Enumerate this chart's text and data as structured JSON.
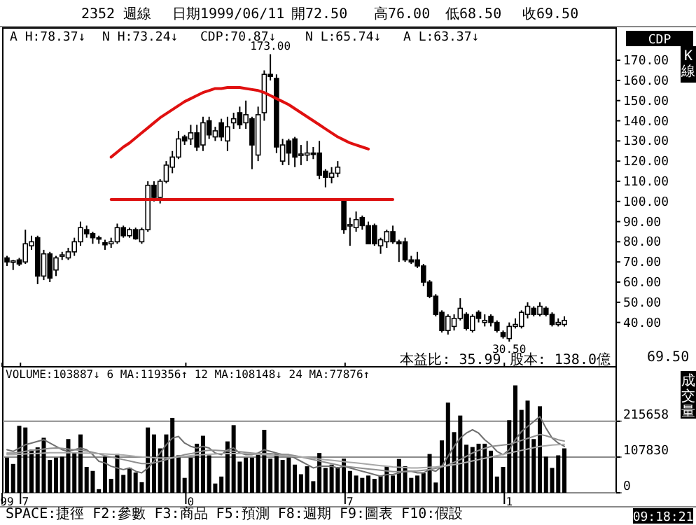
{
  "chart_data": [
    {
      "type": "candlestick",
      "title": "2352 週線",
      "tick_labels": "y",
      "categories": [
        "99",
        null,
        null,
        "7",
        null,
        null,
        null,
        null,
        null,
        null,
        null,
        null,
        null,
        null,
        null,
        null,
        null,
        null,
        null,
        null,
        null,
        null,
        null,
        null,
        null,
        null,
        null,
        null,
        null,
        null,
        "0",
        null,
        null,
        null,
        null,
        null,
        null,
        null,
        null,
        null,
        null,
        null,
        null,
        null,
        null,
        null,
        null,
        null,
        null,
        null,
        null,
        null,
        null,
        null,
        null,
        null,
        "7",
        null,
        null,
        null,
        null,
        null,
        null,
        null,
        null,
        null,
        null,
        null,
        null,
        null,
        null,
        null,
        null,
        null,
        null,
        null,
        null,
        null,
        null,
        null,
        null,
        null,
        "1",
        null,
        null,
        null,
        null,
        null,
        null,
        null,
        null,
        null
      ],
      "ohlc": [
        [
          72,
          73,
          68,
          70
        ],
        [
          70,
          71,
          66,
          70.5
        ],
        [
          71,
          72,
          68,
          69
        ],
        [
          70,
          86,
          69,
          79
        ],
        [
          78,
          83,
          76,
          80
        ],
        [
          82,
          83,
          59,
          63
        ],
        [
          63,
          76,
          61,
          74
        ],
        [
          74,
          75,
          60,
          62
        ],
        [
          66,
          73,
          63,
          72
        ],
        [
          73,
          75,
          71,
          73.5
        ],
        [
          72,
          77,
          71,
          75
        ],
        [
          75,
          82,
          73,
          80
        ],
        [
          80,
          90,
          78,
          87
        ],
        [
          86,
          88,
          82,
          84
        ],
        [
          84,
          85,
          79,
          82
        ],
        [
          82,
          83,
          79,
          81.5
        ],
        [
          79.5,
          81,
          76,
          78.5
        ],
        [
          79,
          82,
          77,
          80
        ],
        [
          80,
          89,
          79,
          87
        ],
        [
          87,
          88,
          82,
          83
        ],
        [
          83,
          87,
          82,
          86
        ],
        [
          86,
          87,
          81,
          81.5
        ],
        [
          80,
          87,
          79,
          86
        ],
        [
          86,
          110,
          85,
          108
        ],
        [
          108,
          110,
          100,
          102
        ],
        [
          102,
          111,
          99,
          110
        ],
        [
          110,
          120,
          109,
          118
        ],
        [
          117,
          125,
          114,
          122
        ],
        [
          122,
          135,
          121,
          131
        ],
        [
          132,
          133,
          128,
          130
        ],
        [
          131,
          138,
          128,
          134
        ],
        [
          134,
          138,
          125,
          127
        ],
        [
          128,
          142,
          125,
          139
        ],
        [
          140,
          142,
          131,
          133
        ],
        [
          132,
          137,
          130,
          135
        ],
        [
          139,
          141,
          130,
          132
        ],
        [
          130,
          142,
          125,
          137
        ],
        [
          139,
          144,
          136,
          141
        ],
        [
          144,
          147,
          136,
          138
        ],
        [
          139,
          150,
          136,
          143
        ],
        [
          141,
          142,
          116,
          128
        ],
        [
          123,
          147,
          120,
          143
        ],
        [
          144,
          165,
          140,
          163
        ],
        [
          163,
          173,
          160,
          162
        ],
        [
          161,
          163,
          124,
          127
        ],
        [
          120,
          131,
          118,
          128
        ],
        [
          130,
          131,
          118,
          124
        ],
        [
          131,
          132,
          117,
          122
        ],
        [
          123,
          128,
          118,
          123.5
        ],
        [
          123,
          130,
          120,
          124
        ],
        [
          124,
          127,
          121,
          123.5
        ],
        [
          124,
          130,
          111,
          113
        ],
        [
          115,
          116,
          107,
          112
        ],
        [
          112,
          117,
          109,
          114
        ],
        [
          114,
          120,
          112,
          117
        ],
        [
          100,
          101,
          84,
          86
        ],
        [
          88,
          92,
          78,
          88.5
        ],
        [
          87,
          95,
          85,
          91
        ],
        [
          92,
          93,
          86,
          88
        ],
        [
          88,
          90,
          79,
          79
        ],
        [
          88,
          89,
          78,
          79
        ],
        [
          78,
          82,
          74,
          81
        ],
        [
          80,
          86,
          77,
          85
        ],
        [
          85,
          88,
          79,
          80
        ],
        [
          80,
          81,
          70,
          79
        ],
        [
          80,
          82,
          70,
          71
        ],
        [
          71,
          73,
          69,
          70
        ],
        [
          71,
          75,
          67,
          68
        ],
        [
          68,
          69,
          58,
          60
        ],
        [
          60,
          61,
          52,
          53
        ],
        [
          53,
          54,
          43,
          44
        ],
        [
          45,
          46,
          35,
          36
        ],
        [
          36,
          44,
          34,
          43
        ],
        [
          38,
          44,
          36,
          42
        ],
        [
          42,
          52,
          41,
          47
        ],
        [
          44,
          45,
          36,
          37
        ],
        [
          36,
          44,
          35,
          43
        ],
        [
          45,
          46,
          40,
          42
        ],
        [
          40,
          44,
          38,
          41
        ],
        [
          43,
          44,
          38,
          40
        ],
        [
          40,
          41,
          35,
          36
        ],
        [
          35,
          36,
          32,
          33
        ],
        [
          32,
          40,
          30.5,
          38
        ],
        [
          38,
          42,
          37,
          39
        ],
        [
          38,
          46,
          37,
          45
        ],
        [
          44,
          50,
          42,
          48
        ],
        [
          47,
          48,
          43,
          44
        ],
        [
          44,
          50,
          43,
          48
        ],
        [
          47,
          48,
          43,
          44
        ],
        [
          44,
          45,
          38,
          39
        ],
        [
          39,
          42,
          38,
          40
        ],
        [
          39,
          43,
          38,
          41
        ]
      ],
      "series": [
        {
          "type": "line",
          "color": "#e01010",
          "values": [
            null,
            null,
            null,
            null,
            null,
            null,
            null,
            null,
            null,
            null,
            null,
            null,
            null,
            null,
            null,
            null,
            null,
            122,
            124.5,
            127,
            129,
            131.5,
            134,
            136.5,
            139,
            141.5,
            143.5,
            145.5,
            147.5,
            149.5,
            151,
            152.5,
            154,
            155,
            156,
            156,
            156.5,
            156.5,
            156.5,
            156,
            155.5,
            155,
            154,
            152.5,
            151,
            149.5,
            148,
            146,
            144,
            142,
            140,
            138,
            136,
            134,
            132,
            130.5,
            129,
            128,
            127,
            126,
            null,
            null,
            null,
            null,
            null,
            null,
            null,
            null,
            null,
            null,
            null,
            null,
            null,
            null,
            null,
            null,
            null,
            null,
            null,
            null,
            null,
            null,
            null,
            null,
            null,
            null,
            null,
            null,
            null,
            null,
            null,
            null
          ]
        },
        {
          "type": "line",
          "color": "#dd1111",
          "values": [
            null,
            null,
            null,
            null,
            null,
            null,
            null,
            null,
            null,
            null,
            null,
            null,
            null,
            null,
            null,
            null,
            null,
            101,
            101,
            101,
            101,
            101,
            101,
            101,
            101,
            101,
            101,
            101,
            101,
            101,
            101,
            101,
            101,
            101,
            101,
            101,
            101,
            101,
            101,
            101,
            101,
            101,
            101,
            101,
            101,
            101,
            101,
            101,
            101,
            101,
            101,
            101,
            101,
            101,
            101,
            101,
            101,
            101,
            101,
            101,
            101,
            101,
            101,
            101,
            null,
            null,
            null,
            null,
            null,
            null,
            null,
            null,
            null,
            null,
            null,
            null,
            null,
            null,
            null,
            null,
            null,
            null,
            null,
            null,
            null,
            null,
            null,
            null,
            null,
            null,
            null,
            null
          ]
        }
      ],
      "ylim": [
        18,
        186
      ],
      "yticks": [
        {
          "value": 40,
          "label": "40.00"
        },
        {
          "value": 50,
          "label": "50.00"
        },
        {
          "value": 60,
          "label": "60.00"
        },
        {
          "value": 70,
          "label": "70.00"
        },
        {
          "value": 80,
          "label": "80.00"
        },
        {
          "value": 90,
          "label": "90.00"
        },
        {
          "value": 100,
          "label": "100.00"
        },
        {
          "value": 110,
          "label": "110.00"
        },
        {
          "value": 120,
          "label": "120.00"
        },
        {
          "value": 130,
          "label": "130.00"
        },
        {
          "value": 140,
          "label": "140.00"
        },
        {
          "value": 150,
          "label": "150.00"
        },
        {
          "value": 160,
          "label": "160.00"
        },
        {
          "value": 170,
          "label": "170.00"
        }
      ],
      "annotations": [
        "日期1999/06/11",
        "開72.50",
        "高76.00",
        "低68.50",
        "收69.50",
        "A H:78.37↓",
        "N H:73.24↓",
        "CDP:70.87↓",
        "N L:65.74↓",
        "A L:63.37↓",
        "173.00",
        "30.50",
        "本益比: 35.99 股本: 138.0億",
        "69.50",
        "CDP",
        "K線"
      ]
    },
    {
      "type": "bar",
      "title": "VOLUME:103887↓ 6 MA:119356↑ 12 MA:108148↓ 24 MA:77876↑",
      "categories": [
        "99",
        null,
        null,
        "7",
        null,
        null,
        null,
        null,
        null,
        null,
        null,
        null,
        null,
        null,
        null,
        null,
        null,
        null,
        null,
        null,
        null,
        null,
        null,
        null,
        null,
        null,
        null,
        null,
        null,
        null,
        "0",
        null,
        null,
        null,
        null,
        null,
        null,
        null,
        null,
        null,
        null,
        null,
        null,
        null,
        null,
        null,
        null,
        null,
        null,
        null,
        null,
        null,
        null,
        null,
        null,
        null,
        "7",
        null,
        null,
        null,
        null,
        null,
        null,
        null,
        null,
        null,
        null,
        null,
        null,
        null,
        null,
        null,
        null,
        null,
        null,
        null,
        null,
        null,
        null,
        null,
        null,
        null,
        "1",
        null,
        null,
        null,
        null,
        null,
        null,
        null,
        null,
        null
      ],
      "series": [
        {
          "color": "#000000",
          "values": [
            106000,
            87000,
            202000,
            197000,
            130000,
            137000,
            166000,
            99000,
            106000,
            109000,
            162000,
            120000,
            176000,
            78000,
            66000,
            11000,
            109000,
            42000,
            117000,
            54000,
            75000,
            61000,
            32000,
            197000,
            176000,
            134000,
            176000,
            226000,
            113000,
            45000,
            106000,
            148000,
            172000,
            113000,
            28000,
            49000,
            155000,
            204000,
            94000,
            106000,
            106000,
            120000,
            190000,
            103000,
            120000,
            99000,
            106000,
            85000,
            56000,
            80000,
            35000,
            120000,
            75000,
            85000,
            78000,
            103000,
            66000,
            52000,
            45000,
            52000,
            42000,
            52000,
            80000,
            52000,
            102000,
            80000,
            45000,
            52000,
            59000,
            117000,
            31000,
            158000,
            272000,
            183000,
            233000,
            145000,
            138000,
            148000,
            148000,
            127000,
            49000,
            78000,
            219000,
            324000,
            250000,
            278000,
            162000,
            261000,
            109000,
            75000,
            113000,
            134000
          ]
        },
        {
          "type": "line",
          "color": "#707070",
          "values": [
            130000,
            125000,
            135000,
            145000,
            150000,
            155000,
            160000,
            150000,
            140000,
            130000,
            125000,
            130000,
            135000,
            130000,
            115000,
            95000,
            90000,
            80000,
            75000,
            70000,
            75000,
            65000,
            60000,
            75000,
            95000,
            120000,
            145000,
            165000,
            170000,
            150000,
            140000,
            135000,
            140000,
            135000,
            120000,
            115000,
            130000,
            135000,
            120000,
            115000,
            115000,
            120000,
            130000,
            125000,
            120000,
            115000,
            115000,
            105000,
            95000,
            85000,
            75000,
            80000,
            80000,
            80000,
            75000,
            80000,
            75000,
            70000,
            65000,
            60000,
            55000,
            50000,
            55000,
            55000,
            60000,
            65000,
            65000,
            60000,
            60000,
            70000,
            65000,
            80000,
            110000,
            140000,
            165000,
            180000,
            190000,
            180000,
            160000,
            145000,
            125000,
            115000,
            130000,
            160000,
            185000,
            200000,
            215000,
            230000,
            195000,
            165000,
            150000,
            140000
          ]
        },
        {
          "type": "line",
          "color": "#909090",
          "values": [
            120000,
            120000,
            122000,
            125000,
            128000,
            130000,
            132000,
            134000,
            135000,
            134000,
            132000,
            130000,
            128000,
            126000,
            122000,
            118000,
            112000,
            108000,
            104000,
            100000,
            96000,
            92000,
            88000,
            88000,
            90000,
            95000,
            100000,
            105000,
            110000,
            115000,
            118000,
            122000,
            126000,
            128000,
            128000,
            127000,
            126000,
            125000,
            124000,
            122000,
            120000,
            118000,
            118000,
            118000,
            117000,
            116000,
            115000,
            112000,
            108000,
            104000,
            100000,
            96000,
            92000,
            88000,
            84000,
            80000,
            78000,
            76000,
            74000,
            72000,
            70000,
            68000,
            66000,
            64000,
            64000,
            64000,
            65000,
            66000,
            68000,
            70000,
            74000,
            78000,
            84000,
            92000,
            100000,
            110000,
            120000,
            128000,
            134000,
            140000,
            142000,
            144000,
            146000,
            152000,
            158000,
            164000,
            170000,
            176000,
            172000,
            166000,
            160000,
            156000
          ]
        },
        {
          "type": "line",
          "color": "#a8a8a8",
          "values": [
            115000,
            115000,
            116000,
            117000,
            118000,
            119000,
            120000,
            121000,
            121000,
            121000,
            121000,
            121000,
            120000,
            120000,
            119000,
            118000,
            117000,
            116000,
            115000,
            114000,
            112000,
            110000,
            108000,
            107000,
            106000,
            105000,
            105000,
            106000,
            108000,
            110000,
            112000,
            114000,
            115000,
            116000,
            117000,
            118000,
            118000,
            118000,
            118000,
            118000,
            117000,
            116000,
            115000,
            114000,
            113000,
            112000,
            111000,
            110000,
            108000,
            106000,
            104000,
            102000,
            100000,
            98000,
            96000,
            94000,
            92000,
            90000,
            88000,
            86000,
            84000,
            82000,
            80000,
            78000,
            77000,
            76000,
            75000,
            75000,
            76000,
            77000,
            78000,
            80000,
            82000,
            85000,
            88000,
            92000,
            96000,
            100000,
            104000,
            108000,
            112000,
            116000,
            120000,
            124000,
            128000,
            132000,
            136000,
            140000,
            142000,
            144000,
            145000,
            146000
          ]
        }
      ],
      "ylim": [
        0,
        380000
      ],
      "yticks": [
        0,
        107830,
        215658
      ],
      "grid": "y",
      "annotations": [
        "成交量",
        "SPACE:捷徑 F2:參數 F3:商品 F5:預測 F8:週期 F9:圖表 F10:假設",
        "09:18:21"
      ]
    }
  ]
}
